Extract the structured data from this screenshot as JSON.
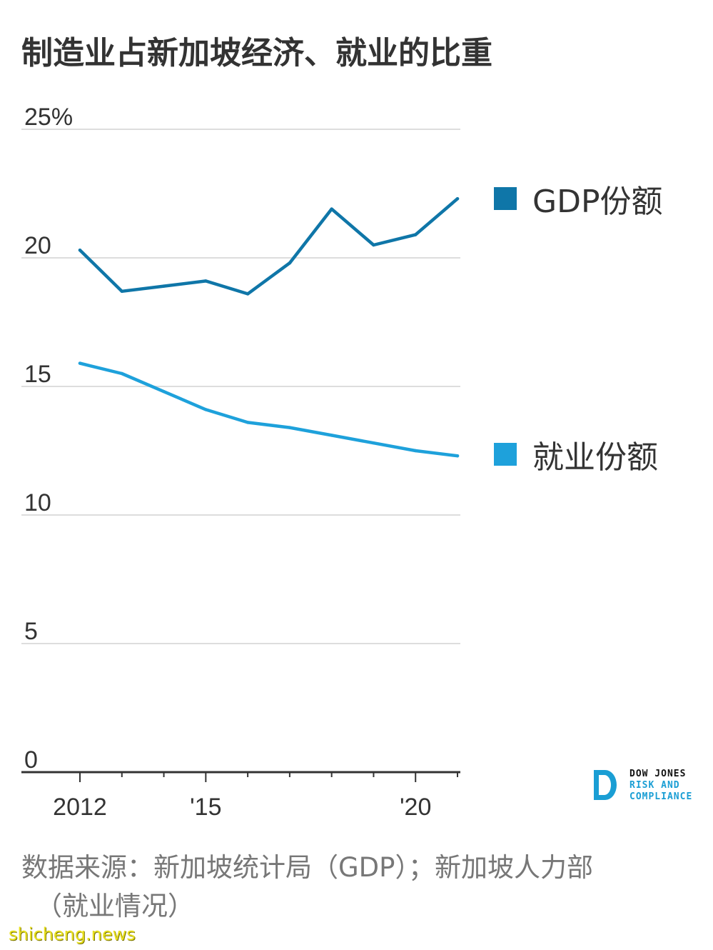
{
  "title": "制造业占新加坡经济、就业的比重",
  "chart_data": {
    "type": "line",
    "x": [
      2012,
      2013,
      2014,
      2015,
      2016,
      2017,
      2018,
      2019,
      2020,
      2021
    ],
    "x_tick_values": [
      2012,
      2015,
      2020
    ],
    "x_tick_labels": [
      "2012",
      "'15",
      "'20"
    ],
    "y_ticks": [
      0,
      5,
      10,
      15,
      20,
      25
    ],
    "y_tick_labels": [
      "0",
      "5",
      "10",
      "15",
      "20",
      "25%"
    ],
    "ylim": [
      0,
      25
    ],
    "xlim": [
      2011.6,
      2021.05
    ],
    "grid": true,
    "legend_placement": "right",
    "series": [
      {
        "name": "GDP份额",
        "color": "#0f76a8",
        "values": [
          20.3,
          18.7,
          18.9,
          19.1,
          18.6,
          19.8,
          21.9,
          20.5,
          20.9,
          22.3
        ]
      },
      {
        "name": "就业份额",
        "color": "#1ea1db",
        "values": [
          15.9,
          15.5,
          14.8,
          14.1,
          13.6,
          13.4,
          13.1,
          12.8,
          12.5,
          12.3
        ]
      }
    ]
  },
  "logo": {
    "line1": "DOW JONES",
    "line2": "RISK AND",
    "line3": "COMPLIANCE"
  },
  "source": {
    "line1": "数据来源：新加坡统计局（GDP）；新加坡人力部",
    "line2": "（就业情况）"
  },
  "watermark": "shicheng.news"
}
